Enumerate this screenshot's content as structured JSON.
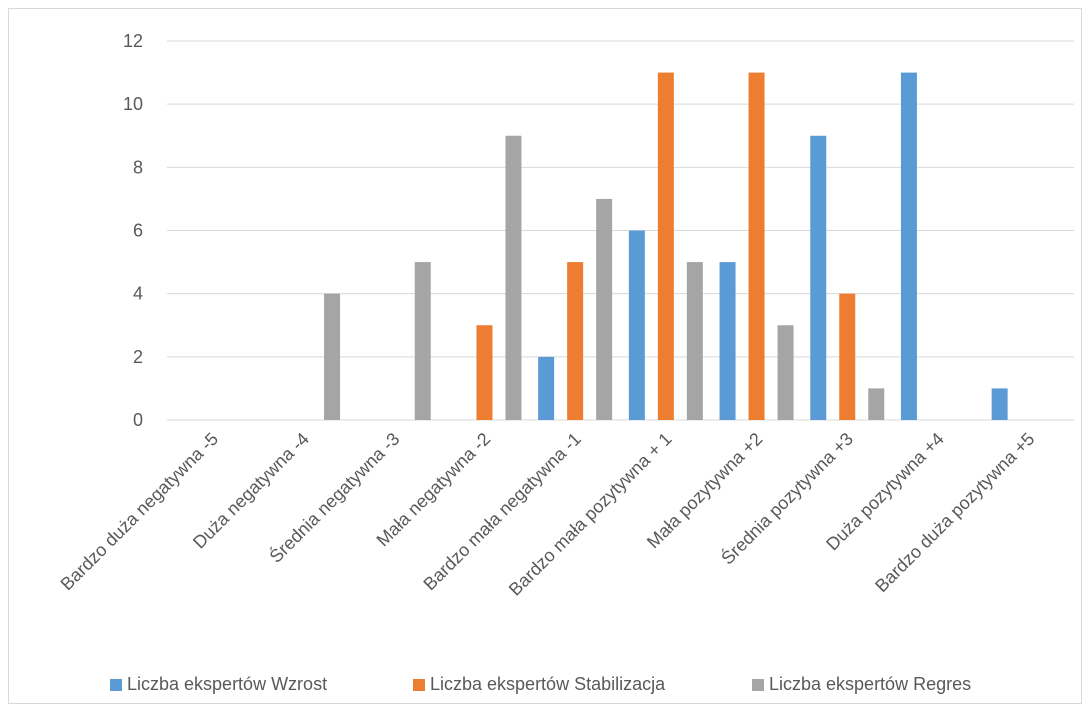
{
  "chart_data": {
    "type": "bar",
    "categories": [
      "Bardzo duża negatywna -5",
      "Duża negatywna -4",
      "Średnia negatywna -3",
      "Mała negatywna -2",
      "Bardzo mała negatywna -1",
      "Bardzo mała pozytywna + 1",
      "Mała pozytywna +2",
      "Średnia pozytywna +3",
      "Duża pozytywna +4",
      "Bardzo duża pozytywna +5"
    ],
    "series": [
      {
        "name": "Liczba ekspertów Wzrost",
        "color": "#5b9bd5",
        "values": [
          0,
          0,
          0,
          0,
          2,
          6,
          5,
          9,
          11,
          1
        ]
      },
      {
        "name": "Liczba ekspertów Stabilizacja",
        "color": "#ed7d31",
        "values": [
          0,
          0,
          0,
          3,
          5,
          11,
          11,
          4,
          0,
          0
        ]
      },
      {
        "name": "Liczba ekspertów Regres",
        "color": "#a5a5a5",
        "values": [
          0,
          4,
          5,
          9,
          7,
          5,
          3,
          1,
          0,
          0
        ]
      }
    ],
    "title": "",
    "xlabel": "",
    "ylabel": "",
    "ylim": [
      0,
      12
    ],
    "yticks": [
      "0",
      "2",
      "4",
      "6",
      "8",
      "10",
      "12"
    ],
    "grid": true,
    "legend_position": "bottom",
    "gridline_color": "#d9d9d9"
  }
}
